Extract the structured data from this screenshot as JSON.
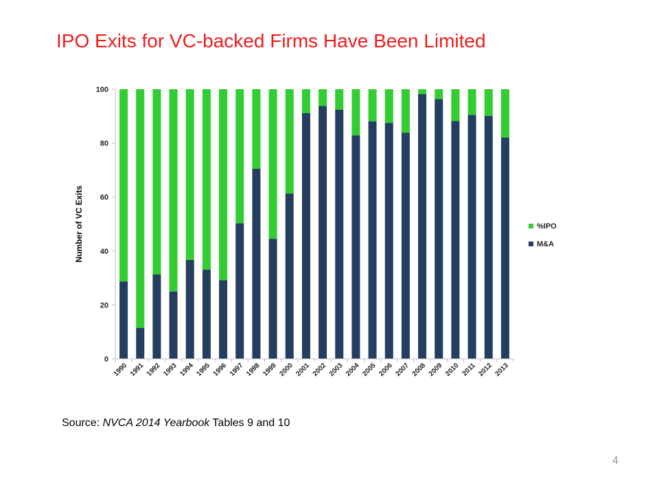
{
  "slide": {
    "title": "IPO Exits for VC-backed Firms Have Been Limited",
    "source_prefix": "Source: ",
    "source_publication": "NVCA 2014 Yearbook",
    "source_suffix": " Tables 9 and 10",
    "page_number": "4"
  },
  "chart_data": {
    "type": "bar",
    "stacked": true,
    "title": "",
    "xlabel": "",
    "ylabel": "Number of VC Exits",
    "ylim": [
      0,
      100
    ],
    "yticks": [
      0,
      20,
      40,
      60,
      80,
      100
    ],
    "grid": false,
    "legend_position": "right",
    "categories": [
      "1990",
      "1991",
      "1992",
      "1993",
      "1994",
      "1995",
      "1996",
      "1997",
      "1998",
      "1999",
      "2000",
      "2001",
      "2002",
      "2003",
      "2004",
      "2005",
      "2006",
      "2007",
      "2008",
      "2009",
      "2010",
      "2011",
      "2012",
      "2013"
    ],
    "series": [
      {
        "name": "M&A",
        "color": "#233e5e",
        "values": [
          28.7,
          11.5,
          31.3,
          25,
          36.7,
          33.1,
          29.2,
          50.3,
          70.5,
          44.5,
          61.3,
          91.1,
          93.8,
          92.4,
          82.9,
          88.1,
          87.5,
          83.9,
          98.2,
          96.3,
          88.2,
          90.5,
          90.1,
          82.1
        ]
      },
      {
        "name": "%IPO",
        "color": "#33cc33",
        "values": [
          71.3,
          88.5,
          68.7,
          75,
          63.3,
          66.9,
          70.8,
          49.7,
          29.5,
          55.5,
          38.7,
          8.9,
          6.2,
          7.6,
          17.1,
          11.9,
          12.5,
          16.1,
          1.8,
          3.7,
          11.8,
          9.5,
          9.9,
          17.9
        ]
      }
    ],
    "legend_order": [
      "%IPO",
      "M&A"
    ]
  }
}
